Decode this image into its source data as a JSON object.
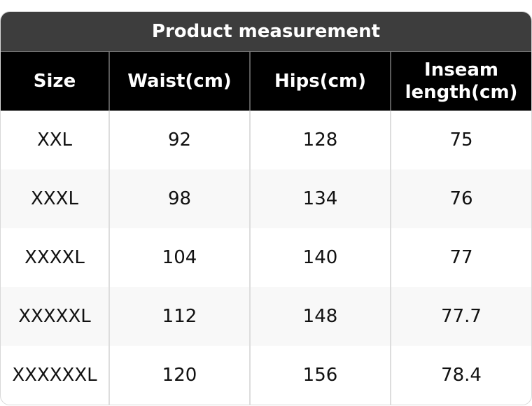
{
  "title": "Product measurement",
  "headers": [
    "Size",
    "Waist(cm)",
    "Hips(cm)",
    "Inseam length(cm)"
  ],
  "rows": [
    [
      "XXL",
      "92",
      "128",
      "75"
    ],
    [
      "XXXL",
      "98",
      "134",
      "76"
    ],
    [
      "XXXXL",
      "104",
      "140",
      "77"
    ],
    [
      "XXXXXL",
      "112",
      "148",
      "77.7"
    ],
    [
      "XXXXXXL",
      "120",
      "156",
      "78.4"
    ]
  ],
  "colors": {
    "title_bg": "#3d3d3d",
    "header_bg": "#000000",
    "alt_row_bg": "#f8f8f8"
  }
}
